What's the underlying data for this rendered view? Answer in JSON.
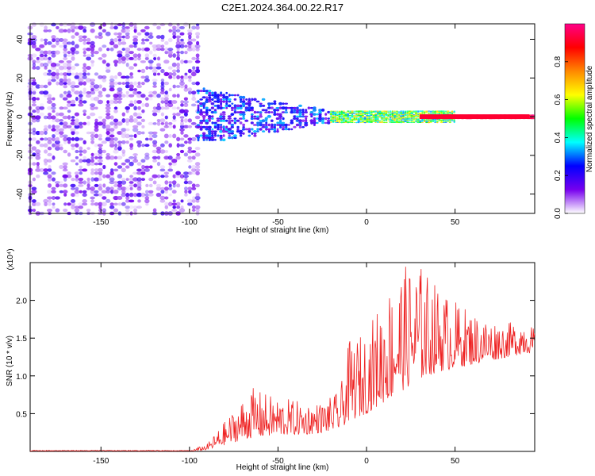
{
  "title": "C2E1.2024.364.00.22.R17",
  "chart_data": [
    {
      "type": "heatmap",
      "xlabel": "Height of straight line (km)",
      "ylabel": "Frequency (Hz)",
      "xlim": [
        -190,
        95
      ],
      "ylim": [
        -50,
        48
      ],
      "xticks": [
        -150,
        -100,
        -50,
        0,
        50
      ],
      "yticks": [
        -40,
        -20,
        0,
        20,
        40
      ],
      "colorbar": {
        "label": "Normalized spectral amplitude",
        "range": [
          0,
          1
        ],
        "ticks": [
          "0.0",
          "0.2",
          "0.4",
          "0.6",
          "0.8"
        ],
        "tick_values": [
          0.0,
          0.2,
          0.4,
          0.6,
          0.8
        ],
        "colors": [
          "#ffffff",
          "#7700ee",
          "#0000ff",
          "#00ffff",
          "#00ff00",
          "#ffff00",
          "#ff8800",
          "#ff0000",
          "#ff0088"
        ]
      },
      "regions": [
        {
          "x_range": [
            -190,
            -95
          ],
          "freq_range": [
            -50,
            48
          ],
          "amplitude": [
            0.02,
            0.2
          ],
          "description": "noise"
        },
        {
          "x_range": [
            -95,
            -20
          ],
          "freq_range": [
            -12,
            15
          ],
          "amplitude": [
            0.1,
            0.35
          ],
          "description": "broad signal"
        },
        {
          "x_range": [
            -20,
            50
          ],
          "freq_range": [
            -3,
            3
          ],
          "amplitude": [
            0.3,
            0.7
          ],
          "description": "narrow signal"
        },
        {
          "x_range": [
            35,
            95
          ],
          "freq_range": [
            -1,
            1
          ],
          "amplitude": [
            0.85,
            1.0
          ],
          "description": "strong line"
        }
      ]
    },
    {
      "type": "line",
      "xlabel": "Height of straight line (km)",
      "ylabel": "SNR (10 * v/v)",
      "multiplier": "(x10⁴)",
      "xlim": [
        -190,
        95
      ],
      "ylim": [
        0,
        2.5
      ],
      "xticks": [
        -150,
        -100,
        -50,
        0,
        50
      ],
      "yticks": [
        "0.5",
        "1.0",
        "1.5",
        "2.0"
      ],
      "ytick_values": [
        0.5,
        1.0,
        1.5,
        2.0
      ],
      "color": "#ee2222",
      "envelope": {
        "x": [
          -190,
          -100,
          -90,
          -85,
          -75,
          -65,
          -55,
          -45,
          -35,
          -25,
          -15,
          -10,
          0,
          10,
          20,
          30,
          40,
          50,
          60,
          70,
          80,
          90,
          95
        ],
        "base": [
          0.0,
          0.0,
          0.02,
          0.05,
          0.12,
          0.18,
          0.2,
          0.22,
          0.22,
          0.25,
          0.3,
          0.4,
          0.5,
          0.65,
          0.8,
          0.95,
          1.05,
          1.1,
          1.15,
          1.2,
          1.25,
          1.3,
          1.3
        ],
        "peak": [
          0.0,
          0.01,
          0.1,
          0.25,
          0.55,
          0.85,
          0.75,
          0.7,
          0.65,
          0.65,
          0.8,
          1.45,
          1.6,
          2.1,
          2.45,
          2.5,
          2.2,
          2.0,
          1.85,
          1.75,
          1.7,
          1.8,
          1.6
        ]
      }
    }
  ]
}
